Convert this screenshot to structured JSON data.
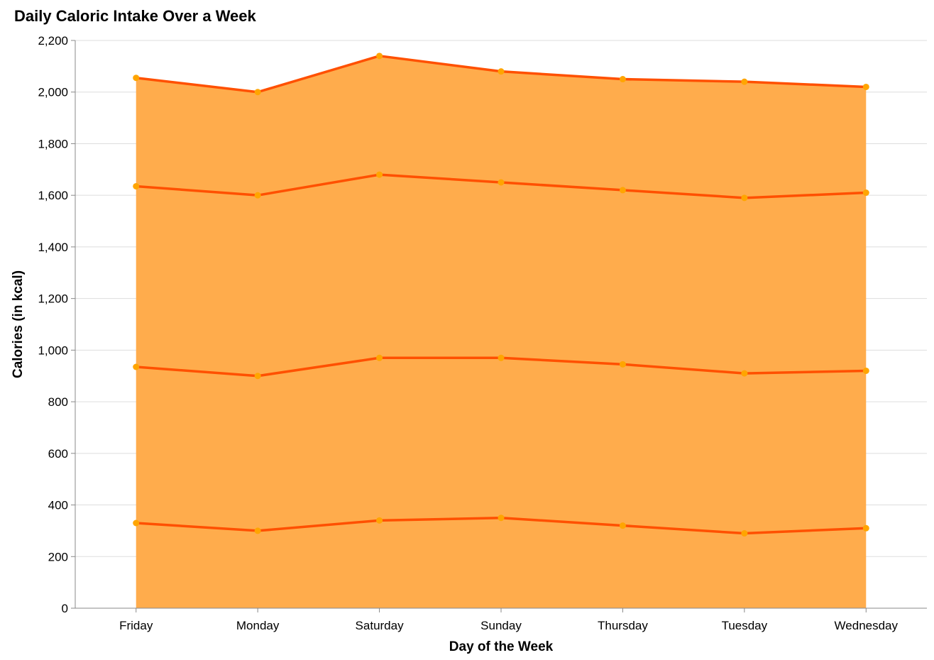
{
  "chart_data": {
    "type": "area",
    "title": "Daily Caloric Intake Over a Week",
    "xlabel": "Day of the Week",
    "ylabel": "Calories (in kcal)",
    "categories": [
      "Friday",
      "Monday",
      "Saturday",
      "Sunday",
      "Thursday",
      "Tuesday",
      "Wednesday"
    ],
    "ylim": [
      0,
      2200
    ],
    "yticks": [
      0,
      200,
      400,
      600,
      800,
      1000,
      1200,
      1400,
      1600,
      1800,
      2000,
      2200
    ],
    "ytick_labels": [
      "0",
      "200",
      "400",
      "600",
      "800",
      "1,000",
      "1,200",
      "1,400",
      "1,600",
      "1,800",
      "2,000",
      "2,200"
    ],
    "grid": true,
    "series": [
      {
        "values": [
          330,
          300,
          340,
          350,
          320,
          290,
          310
        ]
      },
      {
        "values": [
          935,
          900,
          970,
          970,
          945,
          910,
          920
        ]
      },
      {
        "values": [
          1635,
          1600,
          1680,
          1650,
          1620,
          1590,
          1610
        ]
      },
      {
        "values": [
          2055,
          2000,
          2140,
          2080,
          2050,
          2040,
          2020
        ]
      }
    ],
    "colors": {
      "area": "#FFAA48",
      "line": "#FF5000",
      "point": "#FFA500"
    }
  }
}
